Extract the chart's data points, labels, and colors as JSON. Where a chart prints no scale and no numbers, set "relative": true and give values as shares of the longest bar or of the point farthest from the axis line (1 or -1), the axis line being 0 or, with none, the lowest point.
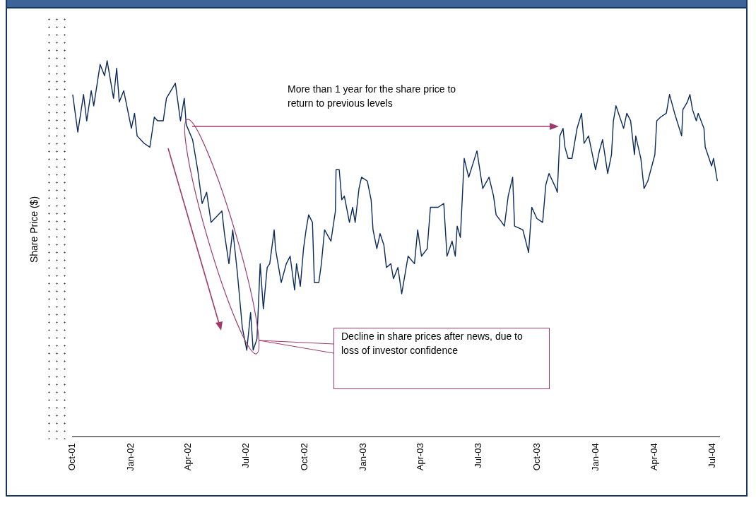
{
  "chart_data": {
    "type": "line",
    "ylabel": "Share Price ($)",
    "relative": true,
    "annotations": [
      "More than 1 year for the share price to return to previous levels",
      "Decline in share prices after news, due to loss of investor confidence"
    ],
    "xlim": [
      "2001-10-01",
      "2004-07-12"
    ],
    "xticks": [
      {
        "value": "2001-10-01",
        "label": "Oct-01"
      },
      {
        "value": "2002-01-01",
        "label": "Jan-02"
      },
      {
        "value": "2002-04-01",
        "label": "Apr-02"
      },
      {
        "value": "2002-07-01",
        "label": "Jul-02"
      },
      {
        "value": "2002-10-01",
        "label": "Oct-02"
      },
      {
        "value": "2003-01-01",
        "label": "Jan-03"
      },
      {
        "value": "2003-04-01",
        "label": "Apr-03"
      },
      {
        "value": "2003-07-01",
        "label": "Jul-03"
      },
      {
        "value": "2003-10-01",
        "label": "Oct-03"
      },
      {
        "value": "2004-01-01",
        "label": "Jan-04"
      },
      {
        "value": "2004-04-01",
        "label": "Apr-04"
      },
      {
        "value": "2004-07-01",
        "label": "Jul-04"
      }
    ],
    "x": [
      "2001-10-02",
      "2001-10-10",
      "2001-10-19",
      "2001-10-24",
      "2001-10-31",
      "2001-11-04",
      "2001-11-14",
      "2001-11-21",
      "2001-11-25",
      "2001-12-05",
      "2001-12-10",
      "2001-12-14",
      "2001-12-21",
      "2002-01-02",
      "2002-01-07",
      "2002-01-11",
      "2002-01-22",
      "2002-01-31",
      "2002-02-07",
      "2002-02-12",
      "2002-02-21",
      "2002-02-26",
      "2002-03-12",
      "2002-03-20",
      "2002-03-26",
      "2002-03-29",
      "2002-04-08",
      "2002-04-16",
      "2002-04-23",
      "2002-04-30",
      "2002-05-07",
      "2002-05-24",
      "2002-05-28",
      "2002-06-04",
      "2002-06-10",
      "2002-06-17",
      "2002-06-25",
      "2002-07-02",
      "2002-07-08",
      "2002-07-12",
      "2002-07-18",
      "2002-07-23",
      "2002-07-28",
      "2002-08-03",
      "2002-08-07",
      "2002-08-14",
      "2002-08-16",
      "2002-08-25",
      "2002-09-02",
      "2002-09-08",
      "2002-09-15",
      "2002-09-18",
      "2002-09-24",
      "2002-09-29",
      "2002-10-03",
      "2002-10-07",
      "2002-10-13",
      "2002-10-16",
      "2002-10-23",
      "2002-10-27",
      "2002-11-01",
      "2002-11-11",
      "2002-11-18",
      "2002-11-19",
      "2002-11-24",
      "2002-11-28",
      "2002-12-02",
      "2002-12-10",
      "2002-12-15",
      "2002-12-19",
      "2002-12-25",
      "2002-12-29",
      "2003-01-07",
      "2003-01-13",
      "2003-01-16",
      "2003-01-22",
      "2003-01-27",
      "2003-02-02",
      "2003-02-06",
      "2003-02-13",
      "2003-02-17",
      "2003-02-24",
      "2003-03-02",
      "2003-03-12",
      "2003-03-22",
      "2003-03-27",
      "2003-04-02",
      "2003-04-11",
      "2003-04-16",
      "2003-04-28",
      "2003-05-07",
      "2003-05-12",
      "2003-05-20",
      "2003-05-25",
      "2003-05-28",
      "2003-06-02",
      "2003-06-08",
      "2003-06-15",
      "2003-06-28",
      "2003-07-07",
      "2003-07-17",
      "2003-07-24",
      "2003-07-28",
      "2003-08-06",
      "2003-08-10",
      "2003-08-16",
      "2003-08-23",
      "2003-08-26",
      "2003-09-08",
      "2003-09-17",
      "2003-09-22",
      "2003-09-30",
      "2003-10-09",
      "2003-10-14",
      "2003-10-19",
      "2003-10-30",
      "2003-11-01",
      "2003-11-05",
      "2003-11-10",
      "2003-11-13",
      "2003-11-18",
      "2003-11-24",
      "2003-12-02",
      "2003-12-09",
      "2003-12-13",
      "2003-12-20",
      "2003-12-31",
      "2004-01-06",
      "2004-01-11",
      "2004-01-19",
      "2004-01-25",
      "2004-01-28",
      "2004-02-01",
      "2004-02-13",
      "2004-02-18",
      "2004-02-24",
      "2004-03-01",
      "2004-03-03",
      "2004-03-11",
      "2004-03-16",
      "2004-03-22",
      "2004-04-02",
      "2004-04-05",
      "2004-04-11",
      "2004-04-20",
      "2004-04-25",
      "2004-05-03",
      "2004-05-14",
      "2004-05-16",
      "2004-05-23",
      "2004-05-27",
      "2004-05-31",
      "2004-06-06",
      "2004-06-09",
      "2004-06-18",
      "2004-06-20",
      "2004-06-30",
      "2004-07-03",
      "2004-07-09"
    ],
    "series": [
      {
        "color": "#0b2a5c",
        "values": [
          0.91,
          0.81,
          0.91,
          0.84,
          0.92,
          0.88,
          0.99,
          0.96,
          1,
          0.9,
          0.98,
          0.89,
          0.92,
          0.82,
          0.86,
          0.8,
          0.78,
          0.77,
          0.85,
          0.84,
          0.84,
          0.9,
          0.94,
          0.84,
          0.9,
          0.83,
          0.79,
          0.71,
          0.62,
          0.65,
          0.57,
          0.6,
          0.54,
          0.46,
          0.55,
          0.44,
          0.29,
          0.23,
          0.33,
          0.23,
          0.26,
          0.46,
          0.34,
          0.45,
          0.46,
          0.55,
          0.5,
          0.41,
          0.46,
          0.48,
          0.39,
          0.46,
          0.4,
          0.5,
          0.55,
          0.59,
          0.57,
          0.41,
          0.41,
          0.46,
          0.55,
          0.52,
          0.6,
          0.71,
          0.71,
          0.63,
          0.64,
          0.57,
          0.61,
          0.57,
          0.66,
          0.69,
          0.68,
          0.63,
          0.55,
          0.5,
          0.54,
          0.51,
          0.45,
          0.46,
          0.42,
          0.45,
          0.38,
          0.48,
          0.46,
          0.55,
          0.48,
          0.5,
          0.61,
          0.61,
          0.62,
          0.48,
          0.52,
          0.48,
          0.56,
          0.53,
          0.74,
          0.69,
          0.76,
          0.66,
          0.69,
          0.64,
          0.59,
          0.57,
          0.56,
          0.64,
          0.69,
          0.56,
          0.55,
          0.49,
          0.61,
          0.58,
          0.57,
          0.67,
          0.7,
          0.66,
          0.65,
          0.8,
          0.82,
          0.77,
          0.74,
          0.74,
          0.82,
          0.86,
          0.78,
          0.8,
          0.71,
          0.76,
          0.79,
          0.7,
          0.75,
          0.84,
          0.88,
          0.82,
          0.86,
          0.84,
          0.75,
          0.8,
          0.74,
          0.66,
          0.68,
          0.75,
          0.84,
          0.85,
          0.86,
          0.91,
          0.86,
          0.8,
          0.87,
          0.89,
          0.91,
          0.87,
          0.84,
          0.86,
          0.82,
          0.77,
          0.72,
          0.74,
          0.68
        ]
      }
    ]
  }
}
